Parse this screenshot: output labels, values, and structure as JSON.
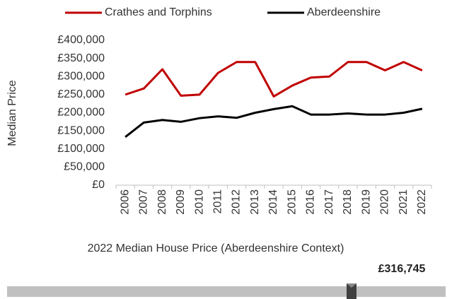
{
  "chart_data": [
    {
      "type": "line",
      "y_label": "Median Price",
      "categories": [
        "2006",
        "2007",
        "2008",
        "2009",
        "2010",
        "2011",
        "2012",
        "2013",
        "2014",
        "2015",
        "2016",
        "2017",
        "2018",
        "2019",
        "2020",
        "2021",
        "2022"
      ],
      "series": [
        {
          "name": "Crathes and Torphins",
          "color": "#c00000",
          "values": [
            250000,
            267000,
            320000,
            247000,
            250000,
            310000,
            340000,
            340000,
            245000,
            275000,
            297000,
            300000,
            340000,
            340000,
            317000,
            340000,
            316745
          ]
        },
        {
          "name": "Aberdeenshire",
          "color": "#000000",
          "values": [
            133000,
            173000,
            180000,
            175000,
            185000,
            190000,
            186000,
            200000,
            210000,
            218000,
            195000,
            195000,
            198000,
            195000,
            195000,
            200000,
            211000
          ]
        }
      ],
      "ylim": [
        0,
        400000
      ],
      "yticks": [
        {
          "value": 0,
          "label": "£0"
        },
        {
          "value": 50000,
          "label": "£50,000"
        },
        {
          "value": 100000,
          "label": "£100,000"
        },
        {
          "value": 150000,
          "label": "£150,000"
        },
        {
          "value": 200000,
          "label": "£200,000"
        },
        {
          "value": 250000,
          "label": "£250,000"
        },
        {
          "value": 300000,
          "label": "£300,000"
        },
        {
          "value": 350000,
          "label": "£350,000"
        },
        {
          "value": 400000,
          "label": "£400,000"
        }
      ],
      "grid": false,
      "legend": "top"
    },
    {
      "type": "indicator",
      "title": "2022 Median House Price (Aberdeenshire Context)",
      "values": [
        316745
      ],
      "value_labels": [
        "£316,745"
      ],
      "color": "#c0c0c0"
    }
  ]
}
